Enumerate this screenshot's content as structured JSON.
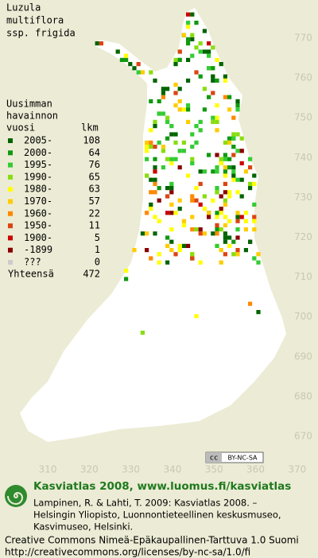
{
  "title": [
    "Luzula",
    "multiflora",
    "ssp. frigida"
  ],
  "legend": {
    "heading": [
      "Uusimman",
      "havainnon",
      "vuosi"
    ],
    "count_heading": "lkm",
    "rows": [
      {
        "label": "2005-",
        "count": 108,
        "color": "#006400"
      },
      {
        "label": "2000-",
        "count": 64,
        "color": "#119911"
      },
      {
        "label": "1995-",
        "count": 76,
        "color": "#33cc33"
      },
      {
        "label": "1990-",
        "count": 65,
        "color": "#88dd11"
      },
      {
        "label": "1980-",
        "count": 63,
        "color": "#ffff00"
      },
      {
        "label": "1970-",
        "count": 57,
        "color": "#ffcc00"
      },
      {
        "label": "1960-",
        "count": 22,
        "color": "#ff8800"
      },
      {
        "label": "1950-",
        "count": 11,
        "color": "#dd4411"
      },
      {
        "label": "1900-",
        "count": 5,
        "color": "#cc0000"
      },
      {
        "label": "-1899",
        "count": 1,
        "color": "#880000"
      },
      {
        "label": "???",
        "count": 0,
        "color": "#cccccc"
      }
    ],
    "total_label": "Yhteensä",
    "total": 472
  },
  "x_labels": [
    310,
    320,
    330,
    340,
    350,
    360,
    370
  ],
  "y_labels": [
    770,
    760,
    750,
    740,
    730,
    720,
    710,
    700,
    690,
    680,
    670
  ],
  "badge": {
    "cc": "cc",
    "terms": "BY-NC-SA"
  },
  "footer": {
    "site": "Kasviatlas 2008, www.luomus.fi/kasviatlas",
    "citation": [
      "Lampinen, R. & Lahti, T. 2009: Kasviatlas 2008. –",
      "Helsingin Yliopisto, Luonnontieteellinen keskusmuseo,",
      "Kasvimuseo, Helsinki."
    ],
    "license": [
      "Creative Commons Nimeä-Epäkaupallinen-Tarttuva 1.0 Suomi",
      "http://creativecommons.org/licenses/by-nc-sa/1.0/fi"
    ]
  }
}
